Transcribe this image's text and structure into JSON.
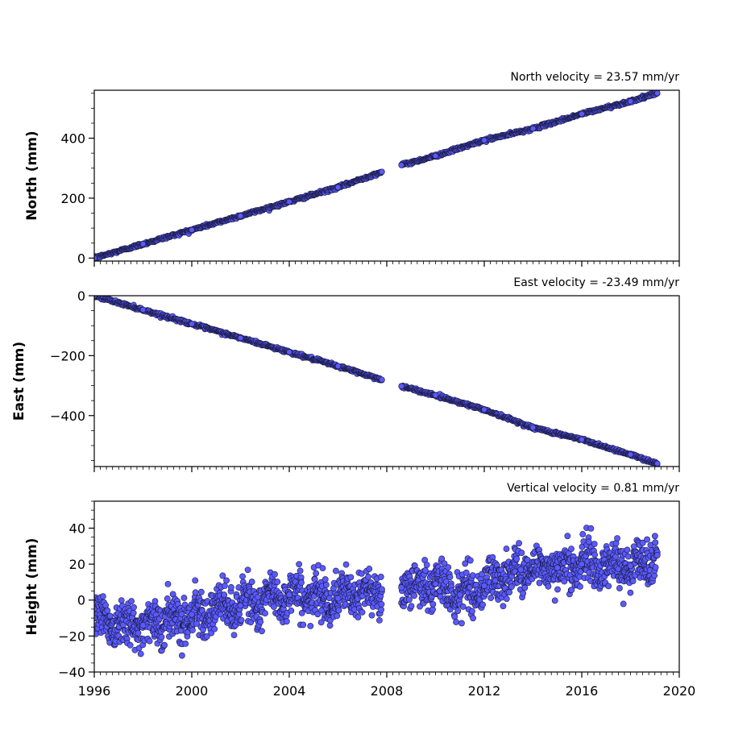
{
  "chart_data": [
    {
      "type": "scatter",
      "title": "North velocity = 23.57 mm/yr",
      "ylabel": "North (mm)",
      "xlim": [
        1996,
        2020
      ],
      "ylim": [
        -10,
        560
      ],
      "yticks": [
        0,
        200,
        400
      ],
      "xtick_labels_shown": false,
      "marker_color": "#5a5aff",
      "edge_color": "#1a1a40",
      "series": [
        {
          "x": [
            1996.0,
            1998.0,
            2000.0,
            2002.0,
            2004.0,
            2006.0,
            2007.8
          ],
          "y": [
            0,
            47,
            94,
            141,
            188,
            236,
            288
          ]
        },
        {
          "x": [
            2008.6,
            2010.0,
            2012.0,
            2014.0,
            2016.0,
            2018.0,
            2019.1
          ],
          "y": [
            310,
            341,
            393,
            432,
            481,
            523,
            550
          ]
        }
      ]
    },
    {
      "type": "scatter",
      "title": "East velocity = -23.49 mm/yr",
      "ylabel": "East (mm)",
      "xlim": [
        1996,
        2020
      ],
      "ylim": [
        -570,
        0
      ],
      "yticks": [
        0,
        -200,
        -400
      ],
      "xtick_labels_shown": false,
      "marker_color": "#5a5aff",
      "edge_color": "#1a1a40",
      "series": [
        {
          "x": [
            1996.0,
            1998.0,
            2000.0,
            2002.0,
            2004.0,
            2006.0,
            2007.8
          ],
          "y": [
            0,
            -47,
            -94,
            -141,
            -188,
            -235,
            -280
          ]
        },
        {
          "x": [
            2008.6,
            2010.0,
            2012.0,
            2014.0,
            2016.0,
            2018.0,
            2019.1
          ],
          "y": [
            -302,
            -332,
            -380,
            -440,
            -480,
            -530,
            -560
          ]
        }
      ]
    },
    {
      "type": "scatter",
      "title": "Vertical velocity = 0.81 mm/yr",
      "ylabel": "Height (mm)",
      "xlim": [
        1996,
        2020
      ],
      "ylim": [
        -40,
        55
      ],
      "yticks": [
        -40,
        -20,
        0,
        20,
        40
      ],
      "xticks": [
        1996,
        2000,
        2004,
        2008,
        2012,
        2016,
        2020
      ],
      "xtick_labels_shown": true,
      "marker_color": "#5a5aff",
      "edge_color": "#1a1a40",
      "series": [
        {
          "x": [
            1996.0,
            1998.0,
            2000.0,
            2002.0,
            2004.0,
            2006.0,
            2007.8
          ],
          "y": [
            -10,
            -14,
            -8,
            -3,
            3,
            1,
            6
          ]
        },
        {
          "x": [
            2008.6,
            2010.0,
            2011.0,
            2012.0,
            2013.5,
            2015.0,
            2016.0,
            2018.0,
            2019.1
          ],
          "y": [
            7,
            9,
            3,
            8,
            17,
            18,
            20,
            19,
            25
          ]
        }
      ]
    }
  ]
}
